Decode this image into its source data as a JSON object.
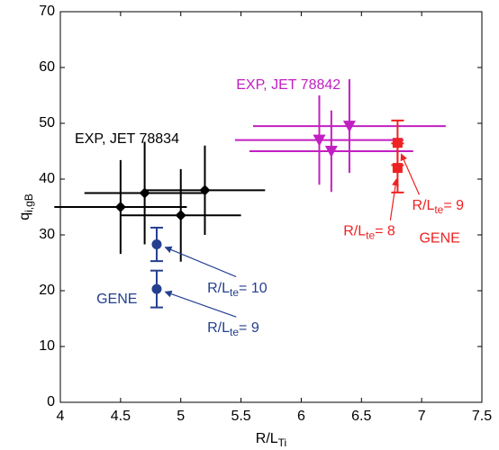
{
  "chart_data": {
    "type": "errorbar",
    "xlabel": {
      "text": "R/L",
      "sub": "Ti"
    },
    "ylabel": {
      "text": "q",
      "sub": "i,gB"
    },
    "xlim": [
      4,
      7.5
    ],
    "xticks": [
      4,
      4.5,
      5,
      5.5,
      6,
      6.5,
      7,
      7.5
    ],
    "ylim": [
      0,
      70
    ],
    "yticks": [
      0,
      10,
      20,
      30,
      40,
      50,
      60,
      70
    ],
    "grid": false,
    "series": [
      {
        "name": "EXP, JET 78834",
        "color": "#000000",
        "marker": "diamond",
        "caps": false,
        "x": [
          4.5,
          4.7,
          5.0,
          5.2
        ],
        "values": [
          35,
          37.5,
          33.5,
          38
        ],
        "xerr": [
          0.55,
          0.5,
          0.5,
          0.5
        ],
        "yerr": [
          8.4,
          9.2,
          8.3,
          8
        ]
      },
      {
        "name": "EXP, JET 78842",
        "color": "#c21fc2",
        "marker": "triangle-down",
        "caps": false,
        "x": [
          6.15,
          6.25,
          6.4
        ],
        "values": [
          47,
          45,
          49.5
        ],
        "xerr": [
          0.7,
          0.68,
          0.8
        ],
        "yerr": [
          8,
          7.3,
          8.4
        ]
      },
      {
        "name": "GENE",
        "color": "#ee2222",
        "marker": "square",
        "caps": true,
        "x": [
          6.8,
          6.8
        ],
        "values": [
          46.5,
          42
        ],
        "yerr": [
          4,
          4.4
        ]
      },
      {
        "name": "GENE",
        "color": "#233f8f",
        "marker": "circle",
        "caps": true,
        "x": [
          4.8,
          4.8
        ],
        "values": [
          28.3,
          20.3
        ],
        "yerr": [
          3,
          3.3
        ]
      }
    ],
    "annotations": [
      {
        "text": "R/L",
        "sub": "te",
        "suffix": "= 10",
        "color": "#233f8f"
      },
      {
        "text": "R/L",
        "sub": "te",
        "suffix": "= 9",
        "color": "#233f8f"
      },
      {
        "text": "R/L",
        "sub": "te",
        "suffix": "= 8",
        "color": "#ee2222"
      },
      {
        "text": "R/L",
        "sub": "te",
        "suffix": "= 9",
        "color": "#ee2222"
      }
    ]
  }
}
